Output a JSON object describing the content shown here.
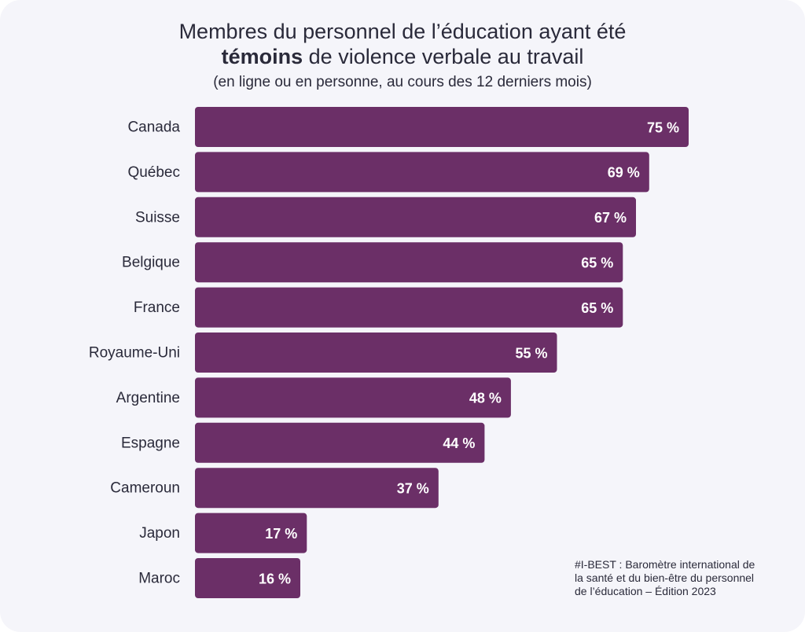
{
  "title": {
    "line1": "Membres du personnel de l’éducation ayant été",
    "line2_bold": "témoins",
    "line2_rest": " de violence verbale au travail"
  },
  "subtitle": "(en ligne ou en personne, au cours des 12 derniers mois)",
  "note": {
    "line1": "#I-BEST : Baromètre international de",
    "line2": "la santé et du bien-être du personnel",
    "line3": "de l’éducation – Édition 2023"
  },
  "colors": {
    "bar": "#6b2f67",
    "bar_label": "#ffffff",
    "category_label": "#2a2a3a",
    "background": "#f5f5fa"
  },
  "chart_data": {
    "type": "bar",
    "orientation": "horizontal",
    "categories": [
      "Canada",
      "Québec",
      "Suisse",
      "Belgique",
      "France",
      "Royaume-Uni",
      "Argentine",
      "Espagne",
      "Cameroun",
      "Japon",
      "Maroc"
    ],
    "values": [
      75,
      69,
      67,
      65,
      65,
      55,
      48,
      44,
      37,
      17,
      16
    ],
    "value_labels": [
      "75 %",
      "69 %",
      "67 %",
      "65 %",
      "65 %",
      "55 %",
      "48 %",
      "44 %",
      "37 %",
      "17 %",
      "16 %"
    ],
    "unit": "%",
    "xlim": [
      0,
      75
    ],
    "grid": false,
    "legend": "none"
  }
}
